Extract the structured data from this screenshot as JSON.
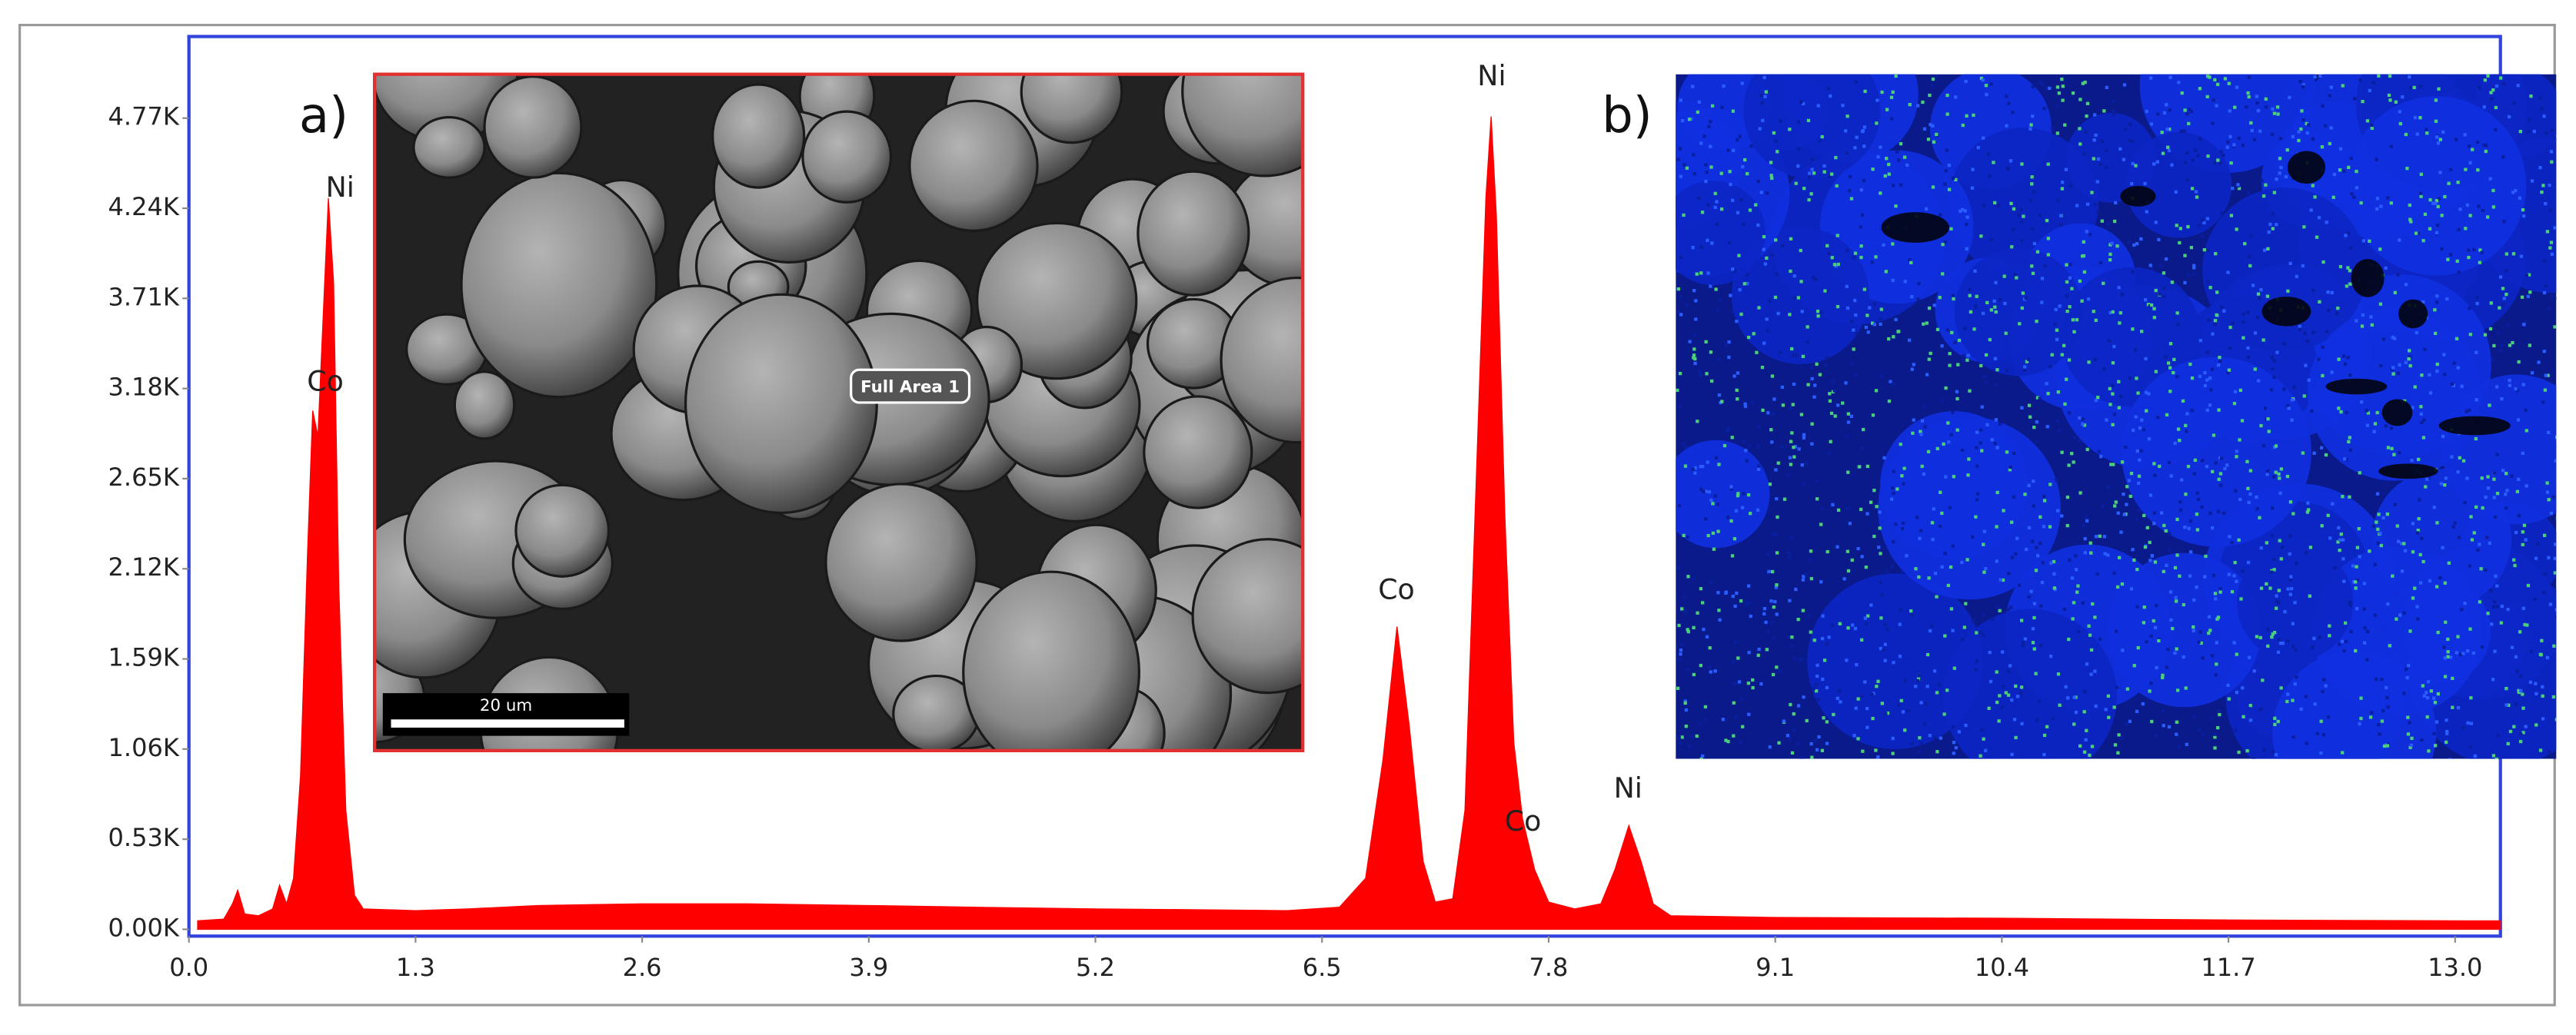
{
  "chart_data": {
    "type": "area",
    "color": "#ff0000",
    "x": [
      0.05,
      0.2,
      0.25,
      0.28,
      0.32,
      0.4,
      0.48,
      0.52,
      0.56,
      0.6,
      0.64,
      0.68,
      0.71,
      0.74,
      0.77,
      0.8,
      0.83,
      0.86,
      0.9,
      0.95,
      1.0,
      1.3,
      1.6,
      2.0,
      2.6,
      3.2,
      3.9,
      4.5,
      5.2,
      5.8,
      6.3,
      6.6,
      6.75,
      6.85,
      6.93,
      7.0,
      7.08,
      7.15,
      7.25,
      7.32,
      7.38,
      7.44,
      7.47,
      7.5,
      7.55,
      7.6,
      7.65,
      7.72,
      7.8,
      7.95,
      8.1,
      8.18,
      8.26,
      8.33,
      8.4,
      8.5,
      9.1,
      10.4,
      11.7,
      13.0,
      13.26
    ],
    "values": [
      50,
      60,
      150,
      230,
      90,
      80,
      120,
      260,
      150,
      300,
      900,
      2200,
      3050,
      2900,
      3600,
      4300,
      3800,
      2000,
      700,
      200,
      120,
      110,
      120,
      140,
      150,
      150,
      140,
      130,
      120,
      115,
      110,
      130,
      300,
      1000,
      1780,
      1200,
      400,
      160,
      180,
      700,
      2500,
      4300,
      4780,
      4200,
      2400,
      1100,
      650,
      350,
      160,
      120,
      150,
      350,
      610,
      400,
      150,
      80,
      70,
      65,
      55,
      50,
      50
    ],
    "xlim": [
      0,
      13.26
    ],
    "ylim": [
      -40,
      5250
    ],
    "xticks": [
      {
        "value": 0,
        "label": "0.0"
      },
      1.3,
      2.6,
      3.9,
      5.2,
      6.5,
      7.8,
      9.1,
      10.4,
      11.7,
      {
        "value": 13,
        "label": "13.0"
      }
    ],
    "yticks": [
      {
        "value": 0,
        "label": "0.00K"
      },
      {
        "value": 530,
        "label": "0.53K"
      },
      {
        "value": 1060,
        "label": "1.06K"
      },
      {
        "value": 1590,
        "label": "1.59K"
      },
      {
        "value": 2120,
        "label": "2.12K"
      },
      {
        "value": 2650,
        "label": "2.65K"
      },
      {
        "value": 3180,
        "label": "3.18K"
      },
      {
        "value": 3710,
        "label": "3.71K"
      },
      {
        "value": 4240,
        "label": "4.24K"
      },
      {
        "value": 4770,
        "label": "4.77K"
      }
    ],
    "annotations": [
      "Ni",
      "Co",
      "Co",
      "Ni",
      "Co",
      "Ni"
    ],
    "inset_a": {
      "label": "a)",
      "area_label": "Full Area 1",
      "scale_bar": "20 um"
    },
    "inset_b": {
      "label": "b)"
    }
  }
}
